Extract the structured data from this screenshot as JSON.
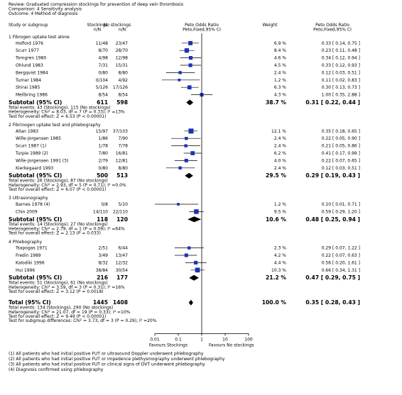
{
  "header": {
    "review": "Review:  Graduated compression stockings for prevention of deep vein thrombosis",
    "comparison": "Comparison:  4 Sensitivity analysis",
    "outcome": "Outcome:  4 Method of diagnosis"
  },
  "columns": {
    "study": "Study or subgroup",
    "exp1": "Stockings",
    "exp2": "n/N",
    "ctl1": "No stockings",
    "ctl2": "n/N",
    "or1": "Peto Odds Ratio",
    "or2": "Peto,Fixed,95% CI",
    "weight": "Weight",
    "ci1": "Peto Odds Ratio",
    "ci2": "Peto,Fixed,95% CI"
  },
  "axis": {
    "ticks": [
      "0.01",
      "0.1",
      "1",
      "10",
      "100"
    ],
    "left_label": "Favours Stockings",
    "right_label": "Favours No stockings"
  },
  "footnotes": [
    "(1) All patients who had initial positive FUT or ultrasound Doppler underwent phlebography",
    "(2) All patients who had initial positive FUT or impedence plethysmography underwent phlebography",
    "(3) All patients who had initial positive FUT or clinical signs of DVT underwent phlebography",
    "(4) Diagnosis confirmed using phlebography"
  ],
  "chart_data": {
    "type": "forest",
    "scale": "log",
    "xlim": [
      0.01,
      100
    ],
    "groups": [
      {
        "title": "1 Fibrogen uptake test alone",
        "studies": [
          {
            "name": "Holford 1976",
            "exp": "11/48",
            "ctl": "23/47",
            "weight": "6.9 %",
            "ci_text": "0.33 [ 0.14, 0.75 ]",
            "or": 0.33,
            "lo": 0.14,
            "hi": 0.75
          },
          {
            "name": "Scurr 1977",
            "exp": "8/70",
            "ctl": "28/70",
            "weight": "8.4 %",
            "ci_text": "0.23 [ 0.11, 0.48 ]",
            "or": 0.23,
            "lo": 0.11,
            "hi": 0.48
          },
          {
            "name": "Torngren 1980",
            "exp": "4/98",
            "ctl": "12/98",
            "weight": "4.6 %",
            "ci_text": "0.34 [ 0.12, 0.94 ]",
            "or": 0.34,
            "lo": 0.12,
            "hi": 0.94
          },
          {
            "name": "Ohlund 1983",
            "exp": "7/31",
            "ctl": "15/31",
            "weight": "4.5 %",
            "ci_text": "0.33 [ 0.12, 0.93 ]",
            "or": 0.33,
            "lo": 0.12,
            "hi": 0.93
          },
          {
            "name": "Bergqvist 1984",
            "exp": "0/80",
            "ctl": "8/80",
            "weight": "2.4 %",
            "ci_text": "0.12 [ 0.03, 0.51 ]",
            "or": 0.12,
            "lo": 0.03,
            "hi": 0.51
          },
          {
            "name": "Turner 1984",
            "exp": "0/104",
            "ctl": "4/92",
            "weight": "1.2 %",
            "ci_text": "0.11 [ 0.02, 0.83 ]",
            "or": 0.11,
            "lo": 0.02,
            "hi": 0.83
          },
          {
            "name": "Shirai 1985",
            "exp": "5/126",
            "ctl": "17/126",
            "weight": "6.3 %",
            "ci_text": "0.30 [ 0.13, 0.73 ]",
            "or": 0.3,
            "lo": 0.13,
            "hi": 0.73
          },
          {
            "name": "Mellbring 1986",
            "exp": "8/54",
            "ctl": "8/54",
            "weight": "4.3 %",
            "ci_text": "1.00 [ 0.35, 2.88 ]",
            "or": 1.0,
            "lo": 0.35,
            "hi": 2.88
          }
        ],
        "subtotal": {
          "label": "Subtotal (95% CI)",
          "exp": "611",
          "ctl": "598",
          "weight": "38.7 %",
          "ci_text": "0.31 [ 0.22, 0.44 ]",
          "or": 0.31,
          "lo": 0.22,
          "hi": 0.44
        },
        "notes": [
          "Total events: 43 (Stockings), 115 (No stockings)",
          "Heterogeneity: Chi² = 8.03, df = 7 (P = 0.33); I² =13%",
          "Test for overall effect: Z = 6.53 (P < 0.00001)"
        ]
      },
      {
        "title": "2 Fibrinogen uptake test and phlebography",
        "studies": [
          {
            "name": "Allan 1983",
            "exp": "15/97",
            "ctl": "37/103",
            "weight": "12.1 %",
            "ci_text": "0.35 [ 0.18, 0.65 ]",
            "or": 0.35,
            "lo": 0.18,
            "hi": 0.65
          },
          {
            "name": "Wille-Jorgensen 1985",
            "exp": "1/86",
            "ctl": "7/90",
            "weight": "2.4 %",
            "ci_text": "0.22 [ 0.05, 0.90 ]",
            "or": 0.22,
            "lo": 0.05,
            "hi": 0.9
          },
          {
            "name": "Scurr 1987 (1)",
            "exp": "1/78",
            "ctl": "7/78",
            "weight": "2.4 %",
            "ci_text": "0.21 [ 0.05, 0.86 ]",
            "or": 0.21,
            "lo": 0.05,
            "hi": 0.86
          },
          {
            "name": "Turpie 1989 (2)",
            "exp": "7/80",
            "ctl": "16/81",
            "weight": "6.2 %",
            "ci_text": "0.41 [ 0.17, 0.99 ]",
            "or": 0.41,
            "lo": 0.17,
            "hi": 0.99
          },
          {
            "name": "Wille-Jorgensen 1991 (3)",
            "exp": "2/79",
            "ctl": "12/81",
            "weight": "4.0 %",
            "ci_text": "0.22 [ 0.07, 0.65 ]",
            "or": 0.22,
            "lo": 0.07,
            "hi": 0.65
          },
          {
            "name": "Kierkegaard 1993",
            "exp": "0/80",
            "ctl": "8/80",
            "weight": "2.4 %",
            "ci_text": "0.12 [ 0.03, 0.51 ]",
            "or": 0.12,
            "lo": 0.03,
            "hi": 0.51
          }
        ],
        "subtotal": {
          "label": "Subtotal (95% CI)",
          "exp": "500",
          "ctl": "513",
          "weight": "29.5 %",
          "ci_text": "0.29 [ 0.19, 0.43 ]",
          "or": 0.29,
          "lo": 0.19,
          "hi": 0.43
        },
        "notes": [
          "Total events: 26 (Stockings), 87 (No stockings)",
          "Heterogeneity: Chi² = 2.93, df = 5 (P = 0.71); I² =0.0%",
          "Test for overall effect: Z = 6.07 (P < 0.00001)"
        ]
      },
      {
        "title": "3 Ultrasonography",
        "studies": [
          {
            "name": "Barnes 1978 (4)",
            "exp": "0/8",
            "ctl": "5/10",
            "weight": "1.2 %",
            "ci_text": "0.10 [ 0.01, 0.71 ]",
            "or": 0.1,
            "lo": 0.01,
            "hi": 0.71
          },
          {
            "name": "Chin 2009",
            "exp": "14/110",
            "ctl": "22/110",
            "weight": "9.5 %",
            "ci_text": "0.59 [ 0.29, 1.20 ]",
            "or": 0.59,
            "lo": 0.29,
            "hi": 1.2
          }
        ],
        "subtotal": {
          "label": "Subtotal (95% CI)",
          "exp": "118",
          "ctl": "120",
          "weight": "10.6 %",
          "ci_text": "0.48 [ 0.25, 0.94 ]",
          "or": 0.48,
          "lo": 0.25,
          "hi": 0.94
        },
        "notes": [
          "Total events: 14 (Stockings), 27 (No stockings)",
          "Heterogeneity: Chi² = 2.79, df = 1 (P = 0.09); I² =64%",
          "Test for overall effect: Z = 2.13 (P = 0.033)"
        ]
      },
      {
        "title": "4 Phlebography",
        "studies": [
          {
            "name": "Tsapogas 1971",
            "exp": "2/51",
            "ctl": "6/44",
            "weight": "2.3 %",
            "ci_text": "0.29 [ 0.07, 1.22 ]",
            "or": 0.29,
            "lo": 0.07,
            "hi": 1.22
          },
          {
            "name": "Fredin 1989",
            "exp": "3/49",
            "ctl": "13/47",
            "weight": "4.2 %",
            "ci_text": "0.22 [ 0.07, 0.63 ]",
            "or": 0.22,
            "lo": 0.07,
            "hi": 0.63
          },
          {
            "name": "Kalodiki 1996",
            "exp": "8/32",
            "ctl": "12/32",
            "weight": "4.4 %",
            "ci_text": "0.56 [ 0.20, 1.61 ]",
            "or": 0.56,
            "lo": 0.2,
            "hi": 1.61
          },
          {
            "name": "Hui 1996",
            "exp": "38/84",
            "ctl": "30/54",
            "weight": "10.3 %",
            "ci_text": "0.66 [ 0.34, 1.31 ]",
            "or": 0.66,
            "lo": 0.34,
            "hi": 1.31
          }
        ],
        "subtotal": {
          "label": "Subtotal (95% CI)",
          "exp": "216",
          "ctl": "177",
          "weight": "21.2 %",
          "ci_text": "0.47 [ 0.29, 0.75 ]",
          "or": 0.47,
          "lo": 0.29,
          "hi": 0.75
        },
        "notes": [
          "Total events: 51 (Stockings), 61 (No stockings)",
          "Heterogeneity: Chi² = 3.59, df = 3 (P = 0.31); I² =16%",
          "Test for overall effect: Z = 3.12 (P = 0.0018)"
        ]
      }
    ],
    "total": {
      "label": "Total (95% CI)",
      "exp": "1445",
      "ctl": "1408",
      "weight": "100.0 %",
      "ci_text": "0.35 [ 0.28, 0.43 ]",
      "or": 0.35,
      "lo": 0.28,
      "hi": 0.43
    },
    "total_notes": [
      "Total events: 134 (Stockings), 290 (No stockings)",
      "Heterogeneity: Chi² = 21.07, df = 19 (P = 0.33); I² =10%",
      "Test for overall effect: Z = 9.49 (P < 0.00001)",
      "Test for subgroup differences: Chi² = 3.73, df = 3 (P = 0.29), I² =20%"
    ]
  }
}
